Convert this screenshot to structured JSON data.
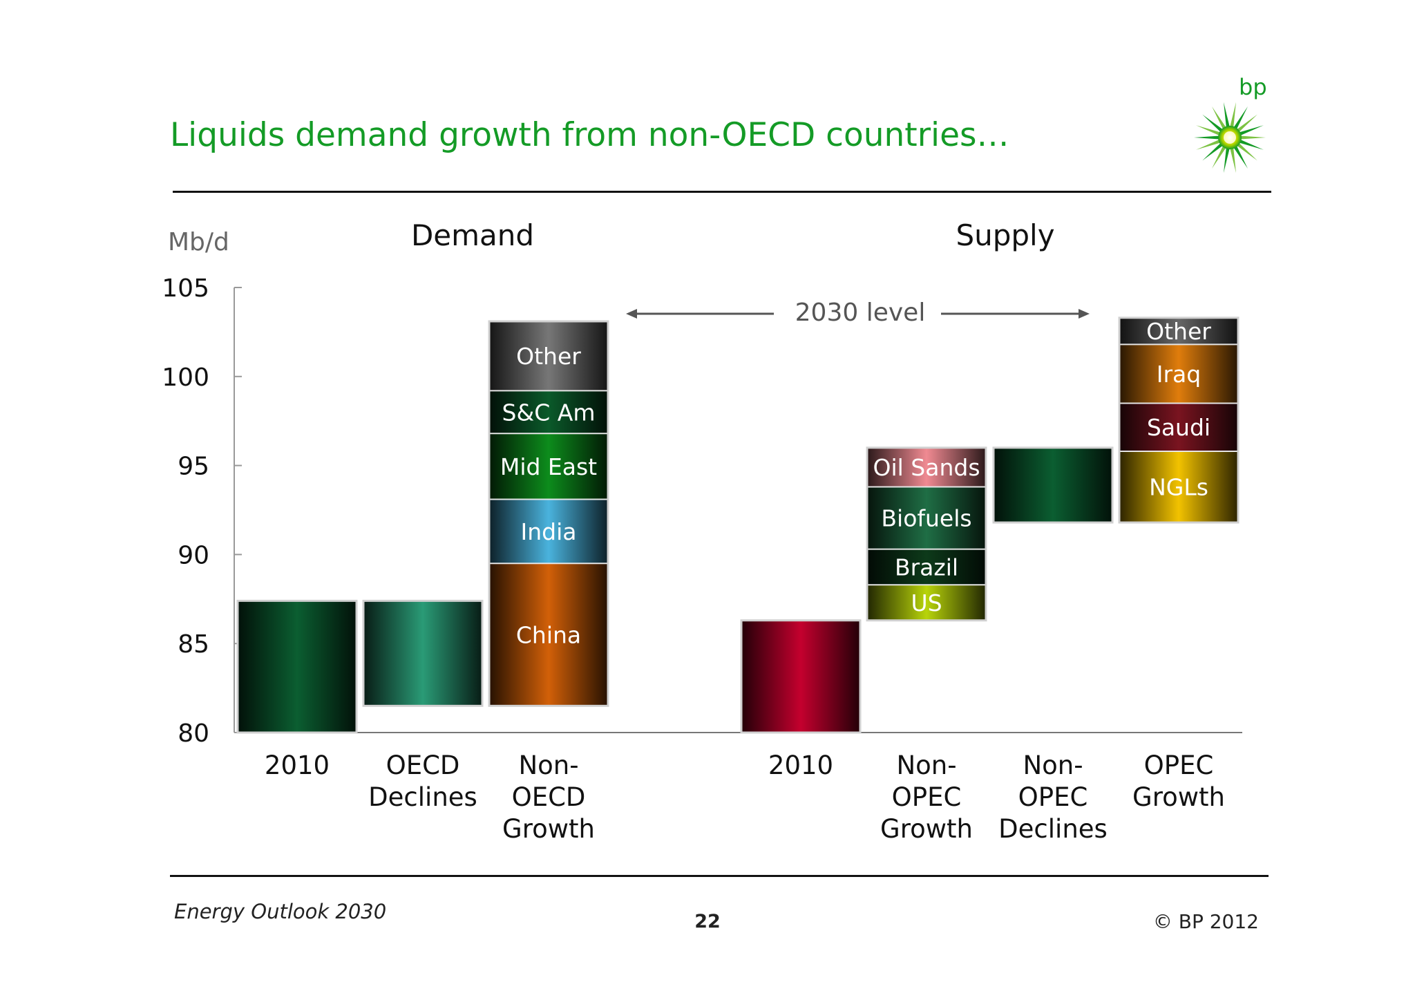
{
  "header": {
    "title": "Liquids demand growth from non-OECD countries…",
    "logo_text": "bp",
    "brand_color": "#149b26"
  },
  "footer": {
    "left": "Energy Outlook 2030",
    "page": "22",
    "right": "© BP 2012"
  },
  "chart_data": {
    "type": "bar",
    "subtype": "waterfall",
    "ylabel": "Mb/d",
    "ylim": [
      80,
      105
    ],
    "yticks": [
      80,
      85,
      90,
      95,
      100,
      105
    ],
    "annotation": "2030 level",
    "groups": [
      {
        "title": "Demand",
        "bars": [
          {
            "label": "2010",
            "segments": [
              {
                "label": "",
                "bottom": 80,
                "top": 87.4,
                "color": "#0b5e31"
              }
            ]
          },
          {
            "label": "OECD Declines",
            "segments": [
              {
                "label": "",
                "bottom": 81.5,
                "top": 87.4,
                "color": "#2a9b76"
              }
            ]
          },
          {
            "label": "Non-OECD Growth",
            "segments": [
              {
                "label": "China",
                "bottom": 81.5,
                "top": 89.5,
                "color": "#d26008"
              },
              {
                "label": "India",
                "bottom": 89.5,
                "top": 93.1,
                "color": "#4ab3dd"
              },
              {
                "label": "Mid East",
                "bottom": 93.1,
                "top": 96.8,
                "color": "#0d8c1c"
              },
              {
                "label": "S&C Am",
                "bottom": 96.8,
                "top": 99.2,
                "color": "#0b5a2a"
              },
              {
                "label": "Other",
                "bottom": 99.2,
                "top": 103.1,
                "color": "#777777"
              }
            ]
          }
        ]
      },
      {
        "title": "Supply",
        "bars": [
          {
            "label": "2010",
            "segments": [
              {
                "label": "",
                "bottom": 80,
                "top": 86.3,
                "color": "#c4002e"
              }
            ]
          },
          {
            "label": "Non-OPEC Growth",
            "segments": [
              {
                "label": "US",
                "bottom": 86.3,
                "top": 88.3,
                "color": "#b8d40a"
              },
              {
                "label": "Brazil",
                "bottom": 88.3,
                "top": 90.3,
                "color": "#0d3a1a"
              },
              {
                "label": "Biofuels",
                "bottom": 90.3,
                "top": 93.8,
                "color": "#1f6e45"
              },
              {
                "label": "Oil Sands",
                "bottom": 93.8,
                "top": 96.0,
                "color": "#f08a92"
              }
            ]
          },
          {
            "label": "Non-OPEC Declines",
            "segments": [
              {
                "label": "",
                "bottom": 91.8,
                "top": 96.0,
                "color": "#0b5e31"
              }
            ]
          },
          {
            "label": "OPEC Growth",
            "segments": [
              {
                "label": "NGLs",
                "bottom": 91.8,
                "top": 95.8,
                "color": "#f2c200"
              },
              {
                "label": "Saudi",
                "bottom": 95.8,
                "top": 98.5,
                "color": "#7a1420"
              },
              {
                "label": "Iraq",
                "bottom": 98.5,
                "top": 101.8,
                "color": "#e07d0c"
              },
              {
                "label": "Other",
                "bottom": 101.8,
                "top": 103.3,
                "color": "#666666"
              }
            ]
          }
        ]
      }
    ]
  }
}
